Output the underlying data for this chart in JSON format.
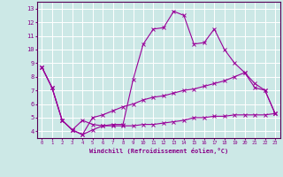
{
  "xlabel": "Windchill (Refroidissement éolien,°C)",
  "background_color": "#cce8e6",
  "grid_color": "#ffffff",
  "line_color": "#990099",
  "xlim": [
    -0.5,
    23.5
  ],
  "ylim": [
    3.5,
    13.5
  ],
  "xticks": [
    0,
    1,
    2,
    3,
    4,
    5,
    6,
    7,
    8,
    9,
    10,
    11,
    12,
    13,
    14,
    15,
    16,
    17,
    18,
    19,
    20,
    21,
    22,
    23
  ],
  "yticks": [
    4,
    5,
    6,
    7,
    8,
    9,
    10,
    11,
    12,
    13
  ],
  "line1_x": [
    0,
    1,
    2,
    3,
    4,
    5,
    6,
    7,
    8,
    9,
    10,
    11,
    12,
    13,
    14,
    15,
    16,
    17,
    18,
    19,
    20,
    21,
    22,
    23
  ],
  "line1_y": [
    8.7,
    7.2,
    4.8,
    4.1,
    3.75,
    4.1,
    4.4,
    4.5,
    4.5,
    7.8,
    10.4,
    11.5,
    11.6,
    12.8,
    12.5,
    10.4,
    10.5,
    11.5,
    10.0,
    9.0,
    8.3,
    7.2,
    7.0,
    5.3
  ],
  "line2_x": [
    0,
    1,
    2,
    3,
    4,
    5,
    6,
    7,
    8,
    9,
    10,
    11,
    12,
    13,
    14,
    15,
    16,
    17,
    18,
    19,
    20,
    21,
    22,
    23
  ],
  "line2_y": [
    8.7,
    7.2,
    4.8,
    4.1,
    3.75,
    5.0,
    5.2,
    5.5,
    5.8,
    6.0,
    6.3,
    6.5,
    6.6,
    6.8,
    7.0,
    7.1,
    7.3,
    7.5,
    7.7,
    8.0,
    8.3,
    7.5,
    7.0,
    5.3
  ],
  "line3_x": [
    0,
    1,
    2,
    3,
    4,
    5,
    6,
    7,
    8,
    9,
    10,
    11,
    12,
    13,
    14,
    15,
    16,
    17,
    18,
    19,
    20,
    21,
    22,
    23
  ],
  "line3_y": [
    8.7,
    7.2,
    4.8,
    4.1,
    4.8,
    4.5,
    4.4,
    4.4,
    4.4,
    4.4,
    4.5,
    4.5,
    4.6,
    4.7,
    4.8,
    5.0,
    5.0,
    5.1,
    5.1,
    5.2,
    5.2,
    5.2,
    5.2,
    5.3
  ]
}
